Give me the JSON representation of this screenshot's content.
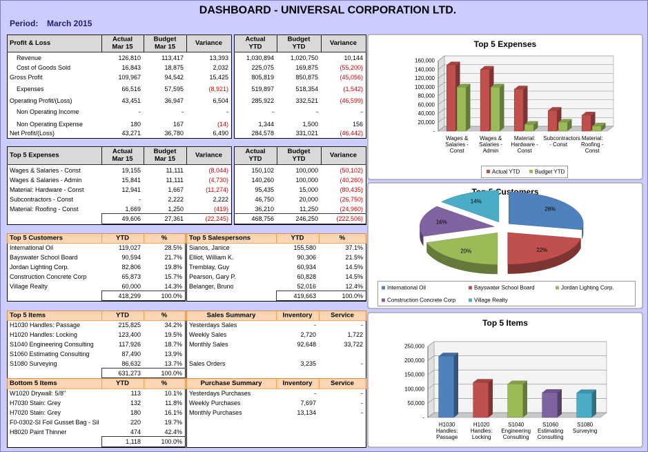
{
  "header": {
    "title": "DASHBOARD - UNIVERSAL CORPORATION LTD.",
    "period_label": "Period:",
    "period": "March 2015"
  },
  "tables": {
    "profit_loss": {
      "header": [
        [
          "Profit & Loss"
        ],
        [
          "Actual",
          "Mar 15"
        ],
        [
          "Budget",
          "Mar 15"
        ],
        [
          "Variance"
        ],
        [
          "Actual",
          "YTD"
        ],
        [
          "Budget",
          "YTD"
        ],
        [
          "Variance"
        ]
      ],
      "rows": [
        [
          "Revenue",
          "126,810",
          "113,417",
          "13,393",
          "1,030,894",
          "1,020,750",
          "10,144"
        ],
        [
          "Cost of Goods Sold",
          "16,843",
          "18,875",
          "2,032",
          "225,075",
          "169,875",
          "(55,200)"
        ],
        [
          "Gross Profit",
          "109,967",
          "94,542",
          "15,425",
          "805,819",
          "850,875",
          "(45,056)"
        ],
        [
          "Expenses",
          "66,516",
          "57,595",
          "(8,921)",
          "519,897",
          "518,354",
          "(1,542)"
        ],
        [
          "Operating Profit/(Loss)",
          "43,451",
          "36,947",
          "6,504",
          "285,922",
          "332,521",
          "(46,599)"
        ],
        [
          "Non Operating Income",
          "-",
          "-",
          "-",
          "-",
          "-",
          "-"
        ],
        [
          "Non Operating Expense",
          "180",
          "167",
          "(14)",
          "1,344",
          "1,500",
          "156"
        ],
        [
          "Net Profit/(Loss)",
          "43,271",
          "36,780",
          "6,490",
          "284,578",
          "331,021",
          "(46,442)"
        ]
      ]
    },
    "top_expenses": {
      "header": [
        [
          "Top 5 Expenses"
        ],
        [
          "Actual",
          "Mar 15"
        ],
        [
          "Budget",
          "Mar 15"
        ],
        [
          "Variance"
        ],
        [
          "Actual",
          "YTD"
        ],
        [
          "Budget",
          "YTD"
        ],
        [
          "Variance"
        ]
      ],
      "rows": [
        [
          "Wages & Salaries - Const",
          "19,155",
          "11,111",
          "(8,044)",
          "150,102",
          "100,000",
          "(50,102)"
        ],
        [
          "Wages & Salaries - Admin",
          "15,841",
          "11,111",
          "(4,730)",
          "140,260",
          "100,000",
          "(40,260)"
        ],
        [
          "Material: Hardware - Const",
          "12,941",
          "1,667",
          "(11,274)",
          "95,435",
          "15,000",
          "(80,435)"
        ],
        [
          "Subcontractors - Const",
          "-",
          "2,222",
          "2,222",
          "46,750",
          "20,000",
          "(26,750)"
        ],
        [
          "Material: Roofing - Const",
          "1,669",
          "1,250",
          "(419)",
          "36,210",
          "11,250",
          "(24,960)"
        ]
      ],
      "total": [
        "49,606",
        "27,361",
        "(22,245)",
        "468,756",
        "246,250",
        "(222,506)"
      ]
    },
    "top_customers": {
      "header": [
        [
          "Top 5 Customers"
        ],
        [
          "YTD"
        ],
        [
          "%"
        ]
      ],
      "rows": [
        [
          "International Oil",
          "119,027",
          "28.5%"
        ],
        [
          "Bayswater School Board",
          "90,594",
          "21.7%"
        ],
        [
          "Jordan Lighting Corp.",
          "82,806",
          "19.8%"
        ],
        [
          "Construction Concrete Corp",
          "65,873",
          "15.7%"
        ],
        [
          "Village Realty",
          "60,000",
          "14.3%"
        ]
      ],
      "total": [
        "418,299",
        "100.0%"
      ]
    },
    "top_salespersons": {
      "header": [
        [
          "Top 5 Salespersons"
        ],
        [
          "YTD"
        ],
        [
          "%"
        ]
      ],
      "rows": [
        [
          "Sianos, Janice",
          "155,580",
          "37.1%"
        ],
        [
          "Elliot, William K.",
          "90,306",
          "21.5%"
        ],
        [
          "Tremblay, Guy",
          "60,934",
          "14.5%"
        ],
        [
          "Pearson, Gary P.",
          "60,828",
          "14.5%"
        ],
        [
          "Belanger, Bruno",
          "52,016",
          "12.4%"
        ]
      ],
      "total": [
        "419,663",
        "100.0%"
      ]
    },
    "top_items": {
      "header": [
        [
          "Top 5 Items"
        ],
        [
          "YTD"
        ],
        [
          "%"
        ]
      ],
      "rows": [
        [
          "H1030 Handles: Passage",
          "215,825",
          "34.2%"
        ],
        [
          "H1020 Handles: Locking",
          "123,400",
          "19.5%"
        ],
        [
          "S1040 Engineering Consulting",
          "117,926",
          "18.7%"
        ],
        [
          "S1060 Estimating Consulting",
          "87,490",
          "13.9%"
        ],
        [
          "S1080 Surveying",
          "86,632",
          "13.7%"
        ]
      ],
      "total": [
        "631,273",
        "100.0%"
      ]
    },
    "sales_summary": {
      "header": [
        [
          "Sales Summary"
        ],
        [
          "Inventory"
        ],
        [
          "Service"
        ]
      ],
      "rows": [
        [
          "Yesterdays Sales",
          "-",
          "-"
        ],
        [
          "Weekly Sales",
          "2,720",
          "1,722"
        ],
        [
          "Monthly Sales",
          "92,648",
          "33,722"
        ],
        [
          "Sales Orders",
          "3,235",
          "-"
        ]
      ]
    },
    "bottom_items": {
      "header": [
        [
          "Bottom 5 Items"
        ],
        [
          "YTD"
        ],
        [
          "%"
        ]
      ],
      "rows": [
        [
          "W1020 Drywall: 5/8\"",
          "113",
          "10.1%"
        ],
        [
          "H7030 Stain: Grey",
          "132",
          "11.8%"
        ],
        [
          "H7020 Stain: Grey",
          "180",
          "16.1%"
        ],
        [
          "F0-0302-SI Foil Gusset Bag - Sil",
          "220",
          "19.7%"
        ],
        [
          "H8020 Paint Thinner",
          "474",
          "42.4%"
        ]
      ],
      "total": [
        "1,118",
        "100.0%"
      ]
    },
    "purchase_summary": {
      "header": [
        [
          "Purchase Summary"
        ],
        [
          "Inventory"
        ],
        [
          "Service"
        ]
      ],
      "rows": [
        [
          "Yesterdays Purchases",
          "-",
          "-"
        ],
        [
          "Weekly Purchases",
          "7,697",
          "-"
        ],
        [
          "Monthly Purchases",
          "13,134",
          "-"
        ]
      ]
    }
  },
  "chart_data": [
    {
      "type": "bar",
      "title": "Top 5 Expenses",
      "categories": [
        "Wages & Salaries - Const",
        "Wages & Salaries - Admin",
        "Material: Hardware - Const",
        "Subcontractors - Const",
        "Material: Roofing - Const"
      ],
      "series": [
        {
          "name": "Actual YTD",
          "color": "#c0504d",
          "values": [
            150102,
            140260,
            95435,
            46750,
            36210
          ]
        },
        {
          "name": "Budget YTD",
          "color": "#9bbb59",
          "values": [
            100000,
            100000,
            15000,
            20000,
            11250
          ]
        }
      ],
      "ylim": [
        0,
        160000
      ],
      "yticks": [
        {
          "value": 0,
          "label": "-"
        },
        {
          "value": 20000,
          "label": "20,000"
        },
        {
          "value": 40000,
          "label": "40,000"
        },
        {
          "value": 60000,
          "label": "60,000"
        },
        {
          "value": 80000,
          "label": "80,000"
        },
        {
          "value": 100000,
          "label": "100,000"
        },
        {
          "value": 120000,
          "label": "120,000"
        },
        {
          "value": 140000,
          "label": "140,000"
        },
        {
          "value": 160000,
          "label": "160,000"
        }
      ],
      "grid": true
    },
    {
      "type": "pie",
      "title": "Top 5 Customers",
      "categories": [
        "International Oil",
        "Bayswater School Board",
        "Jordan Lighting Corp.",
        "Construction Concrete Corp",
        "Village Realty"
      ],
      "values": [
        28,
        22,
        20,
        16,
        14
      ],
      "value_labels": [
        "28%",
        "22%",
        "20%",
        "16%",
        "14%"
      ],
      "colors": [
        "#4f81bd",
        "#c0504d",
        "#9bbb59",
        "#8064a2",
        "#4bacc6"
      ]
    },
    {
      "type": "bar",
      "title": "Top 5 Items",
      "categories": [
        "H1030 Handles: Passage",
        "H1020 Handles: Locking",
        "S1040 Engineering Consulting",
        "S1060 Estimating Consulting",
        "S1080 Surveying"
      ],
      "values": [
        215825,
        123400,
        117926,
        87490,
        86632
      ],
      "colors": [
        "#4f81bd",
        "#c0504d",
        "#9bbb59",
        "#8064a2",
        "#4bacc6"
      ],
      "ylim": [
        0,
        250000
      ],
      "yticks": [
        {
          "value": 0,
          "label": "-"
        },
        {
          "value": 50000,
          "label": "50,000"
        },
        {
          "value": 100000,
          "label": "100,000"
        },
        {
          "value": 150000,
          "label": "150,000"
        },
        {
          "value": 200000,
          "label": "200,000"
        },
        {
          "value": 250000,
          "label": "250,000"
        }
      ],
      "grid": true
    }
  ]
}
